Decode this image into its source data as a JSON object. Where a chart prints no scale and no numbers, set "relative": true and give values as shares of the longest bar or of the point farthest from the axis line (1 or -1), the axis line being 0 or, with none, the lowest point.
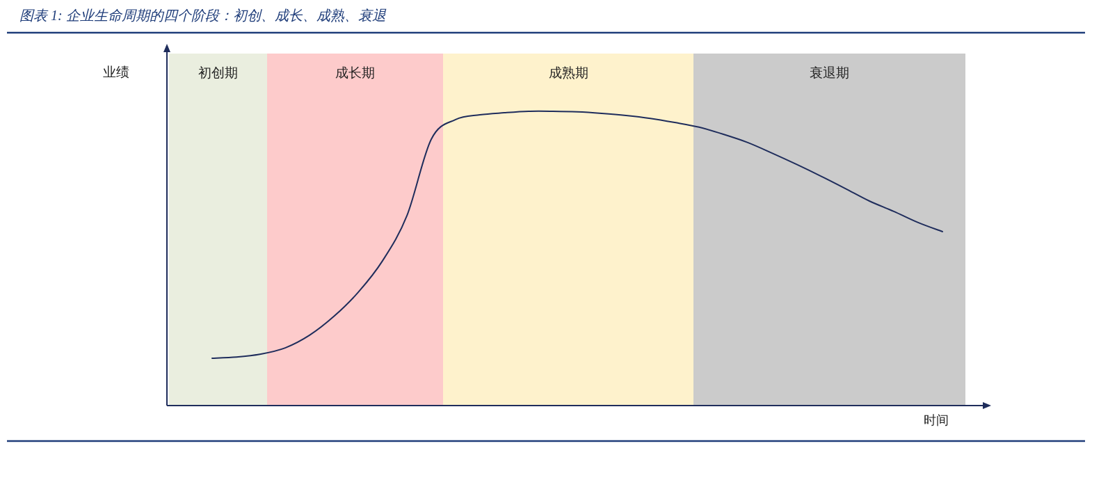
{
  "chart_data": {
    "type": "line",
    "title": "图表 1: 企业生命周期的四个阶段：初创、成长、成熟、衰退",
    "xlabel": "时间",
    "relative": true,
    "marker": "none",
    "line_style": "solid",
    "annotations": [
      "业绩",
      "初创期",
      "成长期",
      "成熟期",
      "衰退期"
    ],
    "categories": [
      null,
      null,
      null,
      null,
      null,
      null,
      null,
      null,
      null,
      null,
      null,
      null,
      null,
      null,
      null,
      null,
      null,
      null,
      null,
      null,
      null,
      null,
      null,
      null,
      null,
      null,
      null,
      null,
      null,
      null,
      null
    ],
    "series": [
      {
        "color": "#1f2d5c",
        "values": [
          0.161,
          0.165,
          0.175,
          0.196,
          0.239,
          0.303,
          0.385,
          0.492,
          0.645,
          0.905,
          0.972,
          0.988,
          0.995,
          1.0,
          1.0,
          0.998,
          0.993,
          0.986,
          0.976,
          0.962,
          0.946,
          0.922,
          0.894,
          0.858,
          0.82,
          0.78,
          0.738,
          0.695,
          0.66,
          0.622,
          0.591
        ]
      }
    ]
  }
}
